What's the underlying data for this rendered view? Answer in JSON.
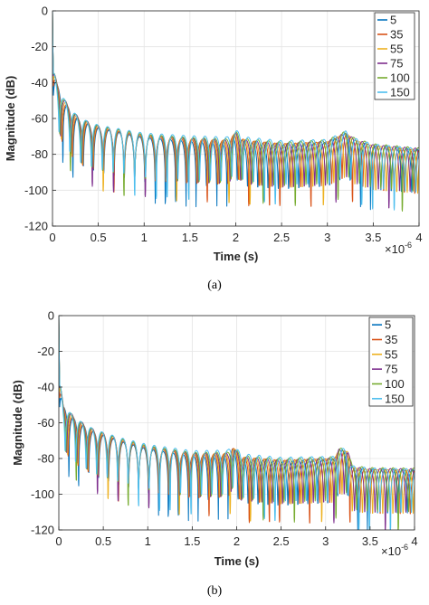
{
  "captions": [
    "(a)",
    "(b)"
  ],
  "colors": {
    "5": "#0072BD",
    "35": "#D95319",
    "55": "#EDB120",
    "75": "#7E2F8E",
    "100": "#77AC30",
    "150": "#4DBEEE"
  },
  "chart_data": [
    {
      "id": "a",
      "type": "line",
      "xlabel": "Time (s)",
      "ylabel": "Magnitude (dB)",
      "x_multiplier_base": "×10",
      "x_multiplier_exp": "-6",
      "xlim": [
        0,
        4
      ],
      "ylim": [
        -120,
        0
      ],
      "xticks": [
        "0",
        "0.5",
        "1",
        "1.5",
        "2",
        "2.5",
        "3",
        "3.5",
        "4"
      ],
      "yticks": [
        "0",
        "-20",
        "-40",
        "-60",
        "-80",
        "-100",
        "-120"
      ],
      "grid": true,
      "legend_position": "top-right",
      "series": [
        {
          "name": "5",
          "color": "#0072BD",
          "variant": 0
        },
        {
          "name": "35",
          "color": "#D95319",
          "variant": 1
        },
        {
          "name": "55",
          "color": "#EDB120",
          "variant": 2
        },
        {
          "name": "75",
          "color": "#7E2F8E",
          "variant": 3
        },
        {
          "name": "100",
          "color": "#77AC30",
          "variant": 4
        },
        {
          "name": "150",
          "color": "#4DBEEE",
          "variant": 5
        }
      ],
      "envelope": {
        "x": [
          0.0,
          0.02,
          0.05,
          0.1,
          0.2,
          0.3,
          0.5,
          0.8,
          1.0,
          1.5,
          1.9,
          2.0,
          2.1,
          2.5,
          3.0,
          3.2,
          3.3,
          3.5,
          4.0
        ],
        "y": [
          -35,
          -35,
          -40,
          -47,
          -55,
          -60,
          -64,
          -67,
          -69,
          -71,
          -72,
          -68,
          -72,
          -74,
          -73,
          -68,
          -72,
          -75,
          -77
        ]
      }
    },
    {
      "id": "b",
      "type": "line",
      "xlabel": "Time (s)",
      "ylabel": "Magnitude (dB)",
      "x_multiplier_base": "×10",
      "x_multiplier_exp": "-6",
      "xlim": [
        0,
        4
      ],
      "ylim": [
        -120,
        0
      ],
      "xticks": [
        "0",
        "0.5",
        "1",
        "1.5",
        "2",
        "2.5",
        "3",
        "3.5",
        "4"
      ],
      "yticks": [
        "0",
        "-20",
        "-40",
        "-60",
        "-80",
        "-100",
        "-120"
      ],
      "grid": true,
      "legend_position": "top-right",
      "series": [
        {
          "name": "5",
          "color": "#0072BD",
          "variant": 0
        },
        {
          "name": "35",
          "color": "#D95319",
          "variant": 1
        },
        {
          "name": "55",
          "color": "#EDB120",
          "variant": 2
        },
        {
          "name": "75",
          "color": "#7E2F8E",
          "variant": 3
        },
        {
          "name": "100",
          "color": "#77AC30",
          "variant": 4
        },
        {
          "name": "150",
          "color": "#4DBEEE",
          "variant": 5
        }
      ],
      "envelope": {
        "x": [
          0.0,
          0.02,
          0.05,
          0.1,
          0.2,
          0.4,
          0.7,
          1.0,
          1.5,
          1.9,
          1.95,
          2.05,
          2.5,
          3.1,
          3.15,
          3.25,
          3.3,
          3.5,
          4.0
        ],
        "y": [
          -38,
          -40,
          -50,
          -53,
          -58,
          -64,
          -69,
          -73,
          -77,
          -77,
          -73,
          -79,
          -81,
          -80,
          -75,
          -76,
          -85,
          -86,
          -86
        ]
      }
    }
  ]
}
